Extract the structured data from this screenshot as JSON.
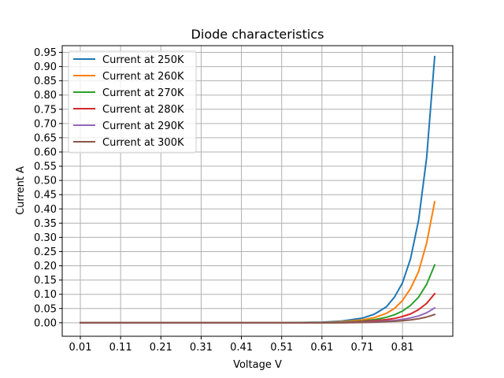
{
  "chart_data": {
    "type": "line",
    "title": "Diode characteristics",
    "xlabel": "Voltage V",
    "ylabel": "Current A",
    "xlim": [
      -0.035,
      0.935
    ],
    "ylim": [
      -0.0475,
      0.9735
    ],
    "x_ticks": [
      "0.01",
      "0.11",
      "0.21",
      "0.31",
      "0.41",
      "0.51",
      "0.61",
      "0.71",
      "0.81"
    ],
    "y_ticks": [
      "0.00",
      "0.05",
      "0.10",
      "0.15",
      "0.20",
      "0.25",
      "0.30",
      "0.35",
      "0.40",
      "0.45",
      "0.50",
      "0.55",
      "0.60",
      "0.65",
      "0.70",
      "0.75",
      "0.80",
      "0.85",
      "0.90",
      "0.95"
    ],
    "grid": true,
    "legend_position": "top-left",
    "series": [
      {
        "name": "Current at 250K",
        "color": "#1f77b4",
        "x": [
          0.01,
          0.11,
          0.21,
          0.31,
          0.41,
          0.51,
          0.61,
          0.66,
          0.71,
          0.74,
          0.77,
          0.79,
          0.81,
          0.83,
          0.85,
          0.87,
          0.89
        ],
        "values": [
          0.0,
          0.0,
          0.0,
          0.0,
          0.0,
          0.0,
          0.002,
          0.006,
          0.016,
          0.03,
          0.056,
          0.09,
          0.14,
          0.225,
          0.36,
          0.58,
          0.935
        ]
      },
      {
        "name": "Current at 260K",
        "color": "#ff7f0e",
        "x": [
          0.01,
          0.11,
          0.21,
          0.31,
          0.41,
          0.51,
          0.61,
          0.66,
          0.71,
          0.74,
          0.77,
          0.79,
          0.81,
          0.83,
          0.85,
          0.87,
          0.89
        ],
        "values": [
          0.0,
          0.0,
          0.0,
          0.0,
          0.0,
          0.0,
          0.001,
          0.004,
          0.01,
          0.018,
          0.033,
          0.05,
          0.078,
          0.12,
          0.18,
          0.28,
          0.425
        ]
      },
      {
        "name": "Current at 270K",
        "color": "#2ca02c",
        "x": [
          0.01,
          0.11,
          0.21,
          0.31,
          0.41,
          0.51,
          0.61,
          0.66,
          0.71,
          0.74,
          0.77,
          0.79,
          0.81,
          0.83,
          0.85,
          0.87,
          0.89
        ],
        "values": [
          0.0,
          0.0,
          0.0,
          0.0,
          0.0,
          0.0,
          0.001,
          0.002,
          0.006,
          0.011,
          0.019,
          0.028,
          0.041,
          0.061,
          0.09,
          0.135,
          0.203
        ]
      },
      {
        "name": "Current at 280K",
        "color": "#d62728",
        "x": [
          0.01,
          0.11,
          0.21,
          0.31,
          0.41,
          0.51,
          0.61,
          0.66,
          0.71,
          0.74,
          0.77,
          0.79,
          0.81,
          0.83,
          0.85,
          0.87,
          0.89
        ],
        "values": [
          0.0,
          0.0,
          0.0,
          0.0,
          0.0,
          0.0,
          0.0,
          0.001,
          0.004,
          0.007,
          0.011,
          0.015,
          0.022,
          0.031,
          0.046,
          0.068,
          0.102
        ]
      },
      {
        "name": "Current at 290K",
        "color": "#9467bd",
        "x": [
          0.01,
          0.11,
          0.21,
          0.31,
          0.41,
          0.51,
          0.61,
          0.66,
          0.71,
          0.74,
          0.77,
          0.79,
          0.81,
          0.83,
          0.85,
          0.87,
          0.89
        ],
        "values": [
          0.0,
          0.0,
          0.0,
          0.0,
          0.0,
          0.0,
          0.0,
          0.001,
          0.002,
          0.004,
          0.006,
          0.008,
          0.012,
          0.017,
          0.024,
          0.035,
          0.052
        ]
      },
      {
        "name": "Current at 300K",
        "color": "#8c564b",
        "x": [
          0.01,
          0.11,
          0.21,
          0.31,
          0.41,
          0.51,
          0.61,
          0.66,
          0.71,
          0.74,
          0.77,
          0.79,
          0.81,
          0.83,
          0.85,
          0.87,
          0.89
        ],
        "values": [
          0.0,
          0.0,
          0.0,
          0.0,
          0.0,
          0.0,
          0.0,
          0.0,
          0.001,
          0.002,
          0.004,
          0.005,
          0.007,
          0.01,
          0.014,
          0.02,
          0.029
        ]
      }
    ]
  }
}
